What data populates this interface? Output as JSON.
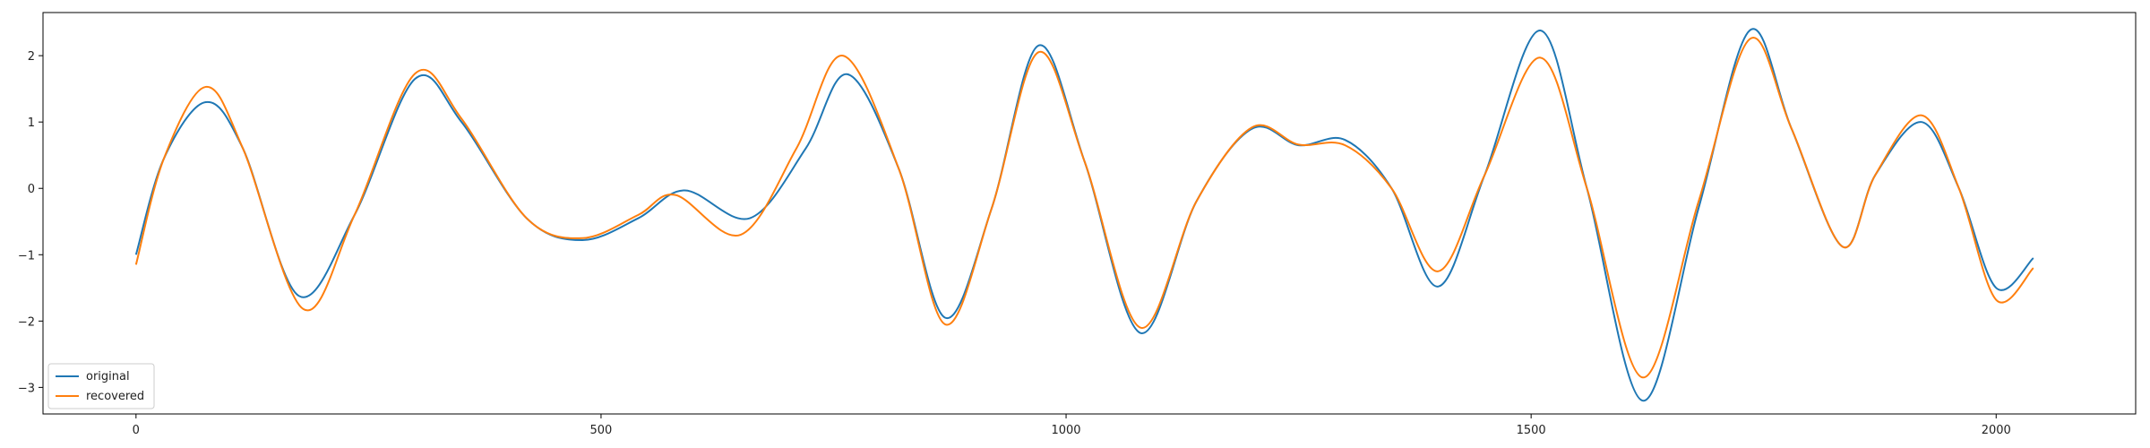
{
  "chart_data": {
    "type": "line",
    "title": "",
    "xlabel": "",
    "ylabel": "",
    "xlim": [
      -100,
      2150
    ],
    "ylim": [
      -3.4,
      2.65
    ],
    "xticks": [
      0,
      500,
      1000,
      1500,
      2000
    ],
    "xtick_labels": [
      "0",
      "500",
      "1000",
      "1500",
      "2000"
    ],
    "yticks": [
      -3,
      -2,
      -1,
      0,
      1,
      2
    ],
    "ytick_labels": [
      "−3",
      "−2",
      "−1",
      "0",
      "1",
      "2"
    ],
    "grid": false,
    "legend_position": "lower-left",
    "series": [
      {
        "name": "original",
        "color": "#1f77b4",
        "points": [
          [
            0,
            -1.0
          ],
          [
            30,
            0.45
          ],
          [
            75,
            1.3
          ],
          [
            115,
            0.6
          ],
          [
            175,
            -1.62
          ],
          [
            235,
            -0.4
          ],
          [
            300,
            1.65
          ],
          [
            350,
            1.0
          ],
          [
            420,
            -0.45
          ],
          [
            480,
            -0.78
          ],
          [
            540,
            -0.45
          ],
          [
            590,
            -0.03
          ],
          [
            660,
            -0.45
          ],
          [
            720,
            0.6
          ],
          [
            765,
            1.72
          ],
          [
            820,
            0.3
          ],
          [
            870,
            -1.95
          ],
          [
            920,
            -0.3
          ],
          [
            970,
            2.15
          ],
          [
            1020,
            0.4
          ],
          [
            1080,
            -2.18
          ],
          [
            1140,
            -0.2
          ],
          [
            1200,
            0.9
          ],
          [
            1250,
            0.65
          ],
          [
            1300,
            0.73
          ],
          [
            1350,
            0.0
          ],
          [
            1400,
            -1.48
          ],
          [
            1450,
            0.2
          ],
          [
            1510,
            2.38
          ],
          [
            1560,
            0.0
          ],
          [
            1620,
            -3.2
          ],
          [
            1680,
            -0.3
          ],
          [
            1735,
            2.38
          ],
          [
            1780,
            0.9
          ],
          [
            1835,
            -0.88
          ],
          [
            1870,
            0.2
          ],
          [
            1920,
            1.0
          ],
          [
            1960,
            0.0
          ],
          [
            2000,
            -1.5
          ],
          [
            2040,
            -1.05
          ]
        ]
      },
      {
        "name": "recovered",
        "color": "#ff7f0e",
        "points": [
          [
            0,
            -1.15
          ],
          [
            30,
            0.45
          ],
          [
            75,
            1.53
          ],
          [
            115,
            0.6
          ],
          [
            180,
            -1.82
          ],
          [
            235,
            -0.4
          ],
          [
            300,
            1.73
          ],
          [
            350,
            1.05
          ],
          [
            420,
            -0.45
          ],
          [
            480,
            -0.75
          ],
          [
            540,
            -0.4
          ],
          [
            580,
            -0.1
          ],
          [
            650,
            -0.7
          ],
          [
            710,
            0.6
          ],
          [
            760,
            2.0
          ],
          [
            820,
            0.3
          ],
          [
            870,
            -2.05
          ],
          [
            920,
            -0.3
          ],
          [
            970,
            2.05
          ],
          [
            1020,
            0.4
          ],
          [
            1080,
            -2.1
          ],
          [
            1140,
            -0.2
          ],
          [
            1200,
            0.92
          ],
          [
            1250,
            0.66
          ],
          [
            1300,
            0.65
          ],
          [
            1350,
            0.0
          ],
          [
            1400,
            -1.25
          ],
          [
            1450,
            0.2
          ],
          [
            1510,
            1.97
          ],
          [
            1560,
            0.0
          ],
          [
            1620,
            -2.85
          ],
          [
            1680,
            -0.2
          ],
          [
            1735,
            2.25
          ],
          [
            1780,
            0.9
          ],
          [
            1835,
            -0.88
          ],
          [
            1870,
            0.2
          ],
          [
            1920,
            1.1
          ],
          [
            1960,
            0.0
          ],
          [
            2000,
            -1.68
          ],
          [
            2040,
            -1.2
          ]
        ]
      }
    ]
  }
}
